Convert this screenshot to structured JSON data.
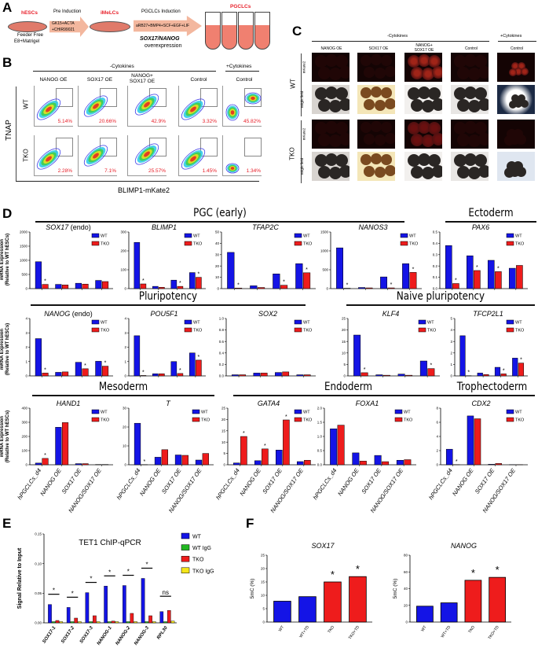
{
  "panel_labels": {
    "a": "A",
    "b": "B",
    "c": "C",
    "d": "D",
    "e": "E",
    "f": "F"
  },
  "panel_a": {
    "hescs": "hESCs",
    "feeder_free": "Feeder Free",
    "e8": "E8+Matrigel",
    "pre_induction": "Pre Induction",
    "pre_media_1": "GK15+ACTA",
    "pre_media_2": "+CHIR99021",
    "imelcs": "iMeLCs",
    "pgclcs_induction": "PGCLCs Induction",
    "pgc_media": "aRB27+BMP4+SCF+EGF+LIF",
    "oe_genes": "SOX17/NANOG",
    "oe_word": "overexpression",
    "pgclcs": "PGCLCs"
  },
  "panel_b": {
    "minus": "-Cytokines",
    "plus": "+Cytokines",
    "columns": [
      "NANOG OE",
      "SOX17 OE",
      "NANOG+\nSOX17 OE",
      "Control",
      "Control"
    ],
    "rows": [
      "WT",
      "TKO"
    ],
    "y_label": "TNAP",
    "x_label": "BLIMP1-mKate2",
    "percents": [
      [
        "5.14%",
        "20.66%",
        "42.9%",
        "3.32%",
        "45.82%"
      ],
      [
        "2.28%",
        "7.1%",
        "25.57%",
        "1.45%",
        "1.34%"
      ]
    ]
  },
  "panel_c": {
    "minus": "-Cytokines",
    "plus": "+Cytokines",
    "columns": [
      "NANOG OE",
      "SOX17 OE",
      "NANOG+\nSOX17 OE",
      "Control",
      "Control"
    ],
    "rows": [
      "WT",
      "TKO"
    ],
    "channels": [
      "mKate2",
      "Bright field"
    ]
  },
  "panel_d": {
    "groups": [
      "PGC (early)",
      "Ectoderm",
      "Pluripotency",
      "Naive pluripotency",
      "Mesoderm",
      "Endoderm",
      "Trophectoderm"
    ],
    "y_label_1": "mRNA Expression",
    "y_label_2": "(Relative to WT hESCs)"
  },
  "colors": {
    "WT": "#1414e6",
    "TKO": "#ee1c1c",
    "WT IgG": "#22b822",
    "TKO IgG": "#f5e61a"
  },
  "chart_data": [
    {
      "type": "bar",
      "title": "SOX17",
      "title_suffix": " (endo)",
      "categories": [
        "hPGCLCs_d4",
        "NANOG OE",
        "SOX17 OE",
        "NANOG/SOX17 OE"
      ],
      "yticks": [
        "0",
        "500",
        "1000",
        "1500",
        "2000"
      ],
      "ylim": [
        0,
        2000
      ],
      "series": [
        {
          "name": "WT",
          "values": [
            950,
            150,
            190,
            290
          ]
        },
        {
          "name": "TKO",
          "values": [
            150,
            130,
            160,
            250
          ],
          "sig": [
            "*",
            "",
            "",
            ""
          ]
        }
      ]
    },
    {
      "type": "bar",
      "title": "BLIMP1",
      "title_suffix": "",
      "categories": [
        "hPGCLCs_d4",
        "NANOG OE",
        "SOX17 OE",
        "NANOG/SOX17 OE"
      ],
      "yticks": [
        "0",
        "100",
        "200",
        "300"
      ],
      "ylim": [
        0,
        300
      ],
      "series": [
        {
          "name": "WT",
          "values": [
            245,
            12,
            45,
            85
          ]
        },
        {
          "name": "TKO",
          "values": [
            25,
            7,
            12,
            60
          ],
          "sig": [
            "*",
            "",
            "*",
            "*"
          ]
        }
      ]
    },
    {
      "type": "bar",
      "title": "TFAP2C",
      "title_suffix": "",
      "categories": [
        "hPGCLCs_d4",
        "NANOG OE",
        "SOX17 OE",
        "NANOG/SOX17 OE"
      ],
      "yticks": [
        "0",
        "10",
        "20",
        "30",
        "40",
        "50"
      ],
      "ylim": [
        0,
        50
      ],
      "series": [
        {
          "name": "WT",
          "values": [
            32,
            2.5,
            13,
            22
          ]
        },
        {
          "name": "TKO",
          "values": [
            0.5,
            1,
            3,
            14
          ],
          "sig": [
            "*",
            "",
            "*",
            "*"
          ]
        }
      ]
    },
    {
      "type": "bar",
      "title": "NANOS3",
      "title_suffix": "",
      "categories": [
        "hPGCLCs_d4",
        "NANOG OE",
        "SOX17 OE",
        "NANOG/SOX17 OE"
      ],
      "yticks": [
        "0",
        "500",
        "1000",
        "1500"
      ],
      "ylim": [
        0,
        1500
      ],
      "series": [
        {
          "name": "WT",
          "values": [
            1080,
            30,
            310,
            660
          ]
        },
        {
          "name": "TKO",
          "values": [
            10,
            20,
            20,
            430
          ],
          "sig": [
            "*",
            "",
            "*",
            "*"
          ]
        }
      ]
    },
    {
      "type": "bar",
      "title": "PAX6",
      "title_suffix": "",
      "categories": [
        "hPGCLCs_d4",
        "NANOG OE",
        "SOX17 OE",
        "NANOG/SOX17 OE"
      ],
      "yticks": [
        "0.0",
        "0.1",
        "0.2",
        "0.3",
        "0.4",
        "0.5"
      ],
      "ylim": [
        0,
        0.5
      ],
      "series": [
        {
          "name": "WT",
          "values": [
            0.38,
            0.29,
            0.25,
            0.18
          ]
        },
        {
          "name": "TKO",
          "values": [
            0.045,
            0.16,
            0.15,
            0.205
          ],
          "sig": [
            "*",
            "*",
            "*",
            ""
          ]
        }
      ]
    },
    {
      "type": "bar",
      "title": "NANOG",
      "title_suffix": " (endo)",
      "categories": [
        "hPGCLCs_d4",
        "NANOG OE",
        "SOX17 OE",
        "NANOG/SOX17 OE"
      ],
      "yticks": [
        "0",
        "1",
        "2",
        "3",
        "4"
      ],
      "ylim": [
        0,
        4
      ],
      "series": [
        {
          "name": "WT",
          "values": [
            2.6,
            0.25,
            0.95,
            1.02
          ]
        },
        {
          "name": "TKO",
          "values": [
            0.2,
            0.28,
            0.5,
            0.68
          ],
          "sig": [
            "*",
            "",
            "*",
            "*"
          ]
        }
      ]
    },
    {
      "type": "bar",
      "title": "POU5F1",
      "title_suffix": "",
      "categories": [
        "hPGCLCs_d4",
        "NANOG OE",
        "SOX17 OE",
        "NANOG/SOX17 OE"
      ],
      "yticks": [
        "0",
        "1",
        "2",
        "3",
        "4"
      ],
      "ylim": [
        0,
        4
      ],
      "series": [
        {
          "name": "WT",
          "values": [
            2.8,
            0.15,
            1.0,
            1.6
          ]
        },
        {
          "name": "TKO",
          "values": [
            0.03,
            0.15,
            0.17,
            1.1
          ],
          "sig": [
            "*",
            "",
            "*",
            "*"
          ]
        }
      ]
    },
    {
      "type": "bar",
      "title": "SOX2",
      "title_suffix": "",
      "categories": [
        "hPGCLCs_d4",
        "NANOG OE",
        "SOX17 OE",
        "NANOG/SOX17 OE"
      ],
      "yticks": [
        "0.0",
        "0.2",
        "0.4",
        "0.6",
        "0.8",
        "1.0"
      ],
      "ylim": [
        0,
        1
      ],
      "series": [
        {
          "name": "WT",
          "values": [
            0.02,
            0.05,
            0.06,
            0.02
          ]
        },
        {
          "name": "TKO",
          "values": [
            0.02,
            0.05,
            0.07,
            0.02
          ],
          "sig": [
            "",
            "",
            "",
            ""
          ]
        }
      ]
    },
    {
      "type": "bar",
      "title": "KLF4",
      "title_suffix": "",
      "categories": [
        "hPGCLCs_d4",
        "NANOG OE",
        "SOX17 OE",
        "NANOG/SOX17 OE"
      ],
      "yticks": [
        "0",
        "5",
        "10",
        "15",
        "20",
        "25"
      ],
      "ylim": [
        0,
        25
      ],
      "series": [
        {
          "name": "WT",
          "values": [
            17.8,
            0.5,
            0.8,
            6.5
          ]
        },
        {
          "name": "TKO",
          "values": [
            1.4,
            0.3,
            0.3,
            3.2
          ],
          "sig": [
            "*",
            "",
            "",
            "*"
          ]
        }
      ]
    },
    {
      "type": "bar",
      "title": "TFCP2L1",
      "title_suffix": "",
      "categories": [
        "hPGCLCs_d4",
        "NANOG OE",
        "SOX17 OE",
        "NANOG/SOX17 OE"
      ],
      "yticks": [
        "0",
        "1",
        "2",
        "3",
        "4",
        "5"
      ],
      "ylim": [
        0,
        5
      ],
      "series": [
        {
          "name": "WT",
          "values": [
            3.5,
            0.25,
            0.75,
            1.55
          ]
        },
        {
          "name": "TKO",
          "values": [
            0.02,
            0.12,
            0.18,
            1.12
          ],
          "sig": [
            "*",
            "",
            "*",
            "*"
          ]
        }
      ]
    },
    {
      "type": "bar",
      "title": "HAND1",
      "title_suffix": "",
      "categories": [
        "hPGCLCs_d4",
        "NANOG OE",
        "SOX17 OE",
        "NANOG/SOX17 OE"
      ],
      "yticks": [
        "0",
        "100",
        "200",
        "300",
        "400"
      ],
      "ylim": [
        0,
        400
      ],
      "series": [
        {
          "name": "WT",
          "values": [
            12,
            265,
            8,
            2
          ]
        },
        {
          "name": "TKO",
          "values": [
            45,
            298,
            8,
            2
          ],
          "sig": [
            "*",
            "",
            "",
            ""
          ]
        }
      ]
    },
    {
      "type": "bar",
      "title": "T",
      "title_suffix": "",
      "categories": [
        "hPGCLCs_d4",
        "NANOG OE",
        "SOX17 OE",
        "NANOG/SOX17 OE"
      ],
      "yticks": [
        "0",
        "10",
        "20",
        "30"
      ],
      "ylim": [
        0,
        30
      ],
      "series": [
        {
          "name": "WT",
          "values": [
            22,
            4,
            5.2,
            2.5
          ]
        },
        {
          "name": "TKO",
          "values": [
            0.1,
            8,
            5,
            6
          ],
          "sig": [
            "*",
            "",
            "",
            ""
          ]
        }
      ]
    },
    {
      "type": "bar",
      "title": "GATA4",
      "title_suffix": "",
      "categories": [
        "hPGCLCs_d4",
        "NANOG OE",
        "SOX17 OE",
        "NANOG/SOX17 OE"
      ],
      "yticks": [
        "0",
        "5",
        "10",
        "15",
        "20",
        "25"
      ],
      "ylim": [
        0,
        25
      ],
      "series": [
        {
          "name": "WT",
          "values": [
            0.8,
            1.8,
            6.5,
            1.4
          ]
        },
        {
          "name": "TKO",
          "values": [
            12.5,
            7,
            19.8,
            2
          ],
          "sig": [
            "*",
            "*",
            "*",
            ""
          ]
        }
      ]
    },
    {
      "type": "bar",
      "title": "FOXA1",
      "title_suffix": "",
      "categories": [
        "hPGCLCs_d4",
        "NANOG OE",
        "SOX17 OE",
        "NANOG/SOX17 OE"
      ],
      "yticks": [
        "0.0",
        "0.5",
        "1.0",
        "1.5",
        "2.0"
      ],
      "ylim": [
        0,
        2
      ],
      "series": [
        {
          "name": "WT",
          "values": [
            1.27,
            0.42,
            0.33,
            0.16
          ]
        },
        {
          "name": "TKO",
          "values": [
            1.4,
            0.13,
            0.11,
            0.18
          ],
          "sig": [
            "",
            "",
            "",
            ""
          ]
        }
      ]
    },
    {
      "type": "bar",
      "title": "CDX2",
      "title_suffix": "",
      "categories": [
        "hPGCLCs_d4",
        "NANOG OE",
        "SOX17 OE",
        "NANOG/SOX17 OE"
      ],
      "yticks": [
        "0",
        "2",
        "4",
        "6",
        "8"
      ],
      "ylim": [
        0,
        8
      ],
      "series": [
        {
          "name": "WT",
          "values": [
            2.2,
            6.9,
            0.07,
            0.02
          ]
        },
        {
          "name": "TKO",
          "values": [
            0.02,
            6.5,
            0.18,
            0.02
          ],
          "sig": [
            "*",
            "",
            "",
            ""
          ]
        }
      ]
    },
    {
      "type": "bar",
      "title": "TET1 ChIP-qPCR",
      "ylabel": "Signal Relative to Input",
      "categories": [
        "SOX17-1",
        "SOX17-2",
        "SOX17-3",
        "NANOG-1",
        "NANOG-2",
        "NANOG-3",
        "RPL30"
      ],
      "yticks": [
        "0.00",
        "0.05",
        "0.10",
        "0.15"
      ],
      "ylim": [
        0,
        0.15
      ],
      "series": [
        {
          "name": "WT",
          "values": [
            0.031,
            0.026,
            0.051,
            0.062,
            0.063,
            0.075,
            0.019
          ]
        },
        {
          "name": "WT IgG",
          "values": [
            0.002,
            0.002,
            0.002,
            0.002,
            0.002,
            0.002,
            0.002
          ]
        },
        {
          "name": "TKO",
          "values": [
            0.004,
            0.008,
            0.012,
            0.003,
            0.016,
            0.012,
            0.021
          ]
        },
        {
          "name": "TKO IgG",
          "values": [
            0.002,
            0.002,
            0.002,
            0.002,
            0.002,
            0.002,
            0.003
          ]
        }
      ],
      "significance": [
        "*",
        "*",
        "*",
        "*",
        "*",
        "*",
        "ns"
      ]
    },
    {
      "type": "bar",
      "title": "SOX17",
      "ylabel": "5mC (%)",
      "categories": [
        "WT",
        "WT+TD",
        "TKO",
        "TKO+TD"
      ],
      "yticks": [
        "0",
        "5",
        "10",
        "15",
        "20",
        "25"
      ],
      "ylim": [
        0,
        25
      ],
      "values": [
        7.8,
        9.5,
        15,
        17
      ],
      "bar_series": [
        "WT",
        "WT",
        "TKO",
        "TKO"
      ],
      "sig": [
        "",
        "",
        "*",
        "*"
      ]
    },
    {
      "type": "bar",
      "title": "NANOG",
      "ylabel": "5mC (%)",
      "categories": [
        "WT",
        "WT+TD",
        "TKO",
        "TKO+TD"
      ],
      "yticks": [
        "0",
        "20",
        "40",
        "60",
        "80"
      ],
      "ylim": [
        0,
        80
      ],
      "values": [
        19,
        23,
        50,
        53.5
      ],
      "bar_series": [
        "WT",
        "WT",
        "TKO",
        "TKO"
      ],
      "sig": [
        "",
        "",
        "*",
        "*"
      ]
    }
  ]
}
